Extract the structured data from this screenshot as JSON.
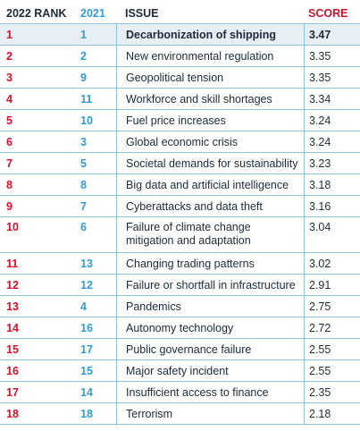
{
  "header": {
    "rank_2022": "2022 RANK",
    "rank_2021": "2021",
    "issue": "ISSUE",
    "score": "SCORE"
  },
  "rows": [
    {
      "rank": "1",
      "prev": "1",
      "issue": "Decarbonization of shipping",
      "score": "3.47"
    },
    {
      "rank": "2",
      "prev": "2",
      "issue": "New environmental regulation",
      "score": "3.35"
    },
    {
      "rank": "3",
      "prev": "9",
      "issue": "Geopolitical tension",
      "score": "3.35"
    },
    {
      "rank": "4",
      "prev": "11",
      "issue": "Workforce and skill shortages",
      "score": "3.34"
    },
    {
      "rank": "5",
      "prev": "10",
      "issue": "Fuel price increases",
      "score": "3.24"
    },
    {
      "rank": "6",
      "prev": "3",
      "issue": "Global economic crisis",
      "score": "3.24"
    },
    {
      "rank": "7",
      "prev": "5",
      "issue": "Societal demands for sustainability",
      "score": "3.23"
    },
    {
      "rank": "8",
      "prev": "8",
      "issue": "Big data and artificial intelligence",
      "score": "3.18"
    },
    {
      "rank": "9",
      "prev": "7",
      "issue": "Cyberattacks and data theft",
      "score": "3.16"
    },
    {
      "rank": "10",
      "prev": "6",
      "issue": "Failure of climate change mitigation and adaptation",
      "score": "3.04"
    },
    {
      "rank": "11",
      "prev": "13",
      "issue": "Changing trading patterns",
      "score": "3.02"
    },
    {
      "rank": "12",
      "prev": "12",
      "issue": "Failure or shortfall in infrastructure",
      "score": "2.91"
    },
    {
      "rank": "13",
      "prev": "4",
      "issue": "Pandemics",
      "score": "2.75"
    },
    {
      "rank": "14",
      "prev": "16",
      "issue": "Autonomy technology",
      "score": "2.72"
    },
    {
      "rank": "15",
      "prev": "17",
      "issue": "Public governance failure",
      "score": "2.55"
    },
    {
      "rank": "16",
      "prev": "15",
      "issue": "Major safety incident",
      "score": "2.55"
    },
    {
      "rank": "17",
      "prev": "14",
      "issue": "Insufficient access to finance",
      "score": "2.35"
    },
    {
      "rank": "18",
      "prev": "18",
      "issue": "Terrorism",
      "score": "2.18"
    }
  ],
  "colors": {
    "rank_red": "#d0112b",
    "prev_blue": "#2f9cd3",
    "grid": "#8fc3dc",
    "highlight_bg": "#e7eef4"
  }
}
